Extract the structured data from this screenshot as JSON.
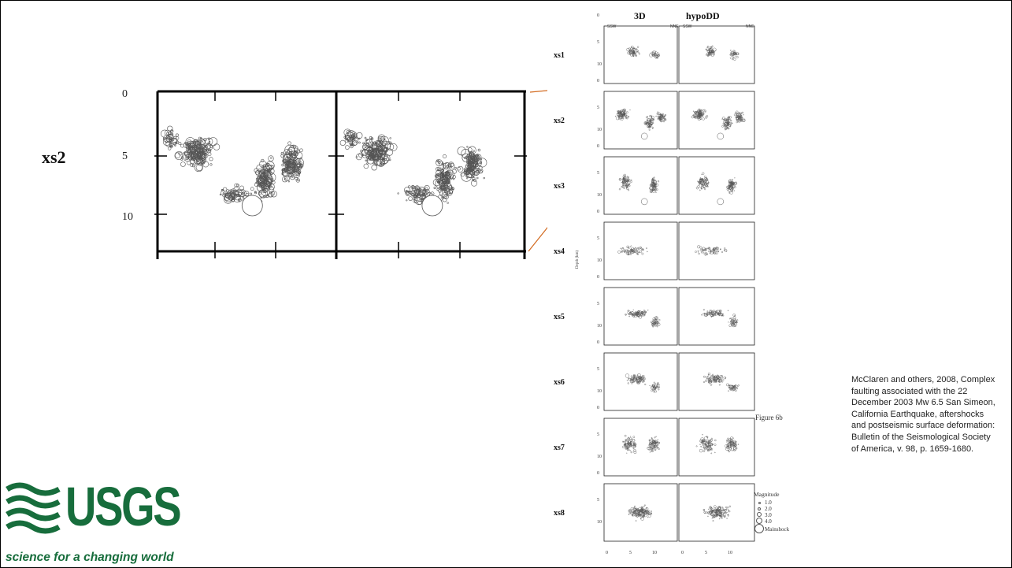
{
  "zoom": {
    "row_label": "xs2",
    "depth_ticks": [
      "0",
      "5",
      "10"
    ]
  },
  "figure": {
    "columns": [
      "3D",
      "hypoDD"
    ],
    "directions": [
      "SSW",
      "NNE",
      "SSW",
      "NNE"
    ],
    "rows": [
      "xs1",
      "xs2",
      "xs3",
      "xs4",
      "xs5",
      "xs6",
      "xs7",
      "xs8"
    ],
    "depth_ticks": [
      "0",
      "5",
      "10"
    ],
    "x_ticks": [
      "0",
      "5",
      "10",
      "0",
      "5",
      "10"
    ],
    "depth_axis_label": "Depth (km)",
    "caption": "Figure 6b",
    "legend": {
      "title": "Magnitude",
      "items": [
        "1.0",
        "2.0",
        "3.0",
        "4.0",
        "Mainshock"
      ]
    }
  },
  "citation": "McClaren and others, 2008, Complex faulting associated with the 22 December 2003 Mw 6.5 San Simeon, California Earthquake, aftershocks and postseismic surface deformation: Bulletin of the Seismological Society of America, v. 98, p. 1659-1680.",
  "logo": {
    "wordmark": "USGS",
    "tagline": "science for a changing world"
  },
  "colors": {
    "connector": "#d2691e",
    "logo_green": "#176d3c"
  }
}
